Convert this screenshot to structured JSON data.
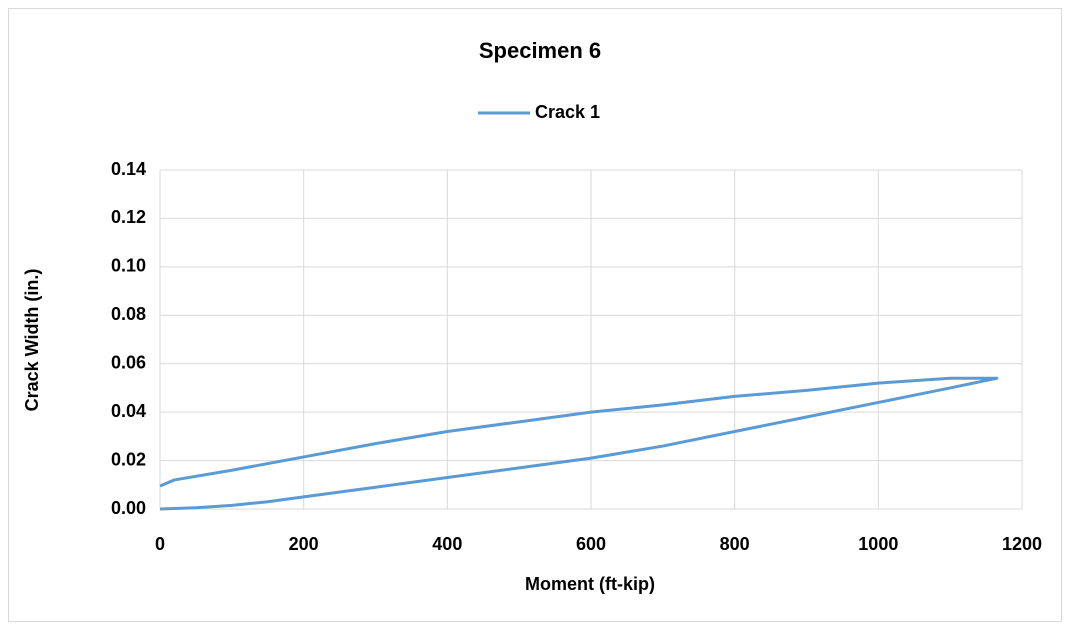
{
  "chart_data": {
    "type": "line",
    "title": "Specimen 6",
    "x_label": "Moment (ft-kip)",
    "y_label": "Crack Width (in.)",
    "x": [
      0,
      50,
      100,
      150,
      200,
      300,
      400,
      500,
      600,
      700,
      800,
      900,
      1000,
      1050,
      1100,
      1165,
      1100,
      1000,
      900,
      800,
      700,
      600,
      500,
      400,
      300,
      200,
      100,
      20,
      0
    ],
    "series": [
      {
        "name": "Crack 1",
        "color": "#5b9bd5",
        "values": [
          0,
          0.0005,
          0.0015,
          0.003,
          0.005,
          0.009,
          0.013,
          0.017,
          0.021,
          0.026,
          0.032,
          0.038,
          0.044,
          0.047,
          0.05,
          0.054,
          0.054,
          0.052,
          0.049,
          0.0465,
          0.043,
          0.04,
          0.036,
          0.032,
          0.027,
          0.0215,
          0.016,
          0.012,
          0.0095
        ]
      }
    ],
    "xlim": [
      0,
      1200
    ],
    "xticks": [
      0,
      200,
      400,
      600,
      800,
      1000,
      1200
    ],
    "ylim": [
      0,
      0.14
    ],
    "yticks": [
      {
        "value": 0,
        "label": "0.00"
      },
      {
        "value": 0.02,
        "label": "0.02"
      },
      {
        "value": 0.04,
        "label": "0.04"
      },
      {
        "value": 0.06,
        "label": "0.06"
      },
      {
        "value": 0.08,
        "label": "0.08"
      },
      {
        "value": 0.1,
        "label": "0.10"
      },
      {
        "value": 0.12,
        "label": "0.12"
      },
      {
        "value": 0.14,
        "label": "0.14"
      }
    ],
    "grid": true,
    "legend": "top"
  }
}
